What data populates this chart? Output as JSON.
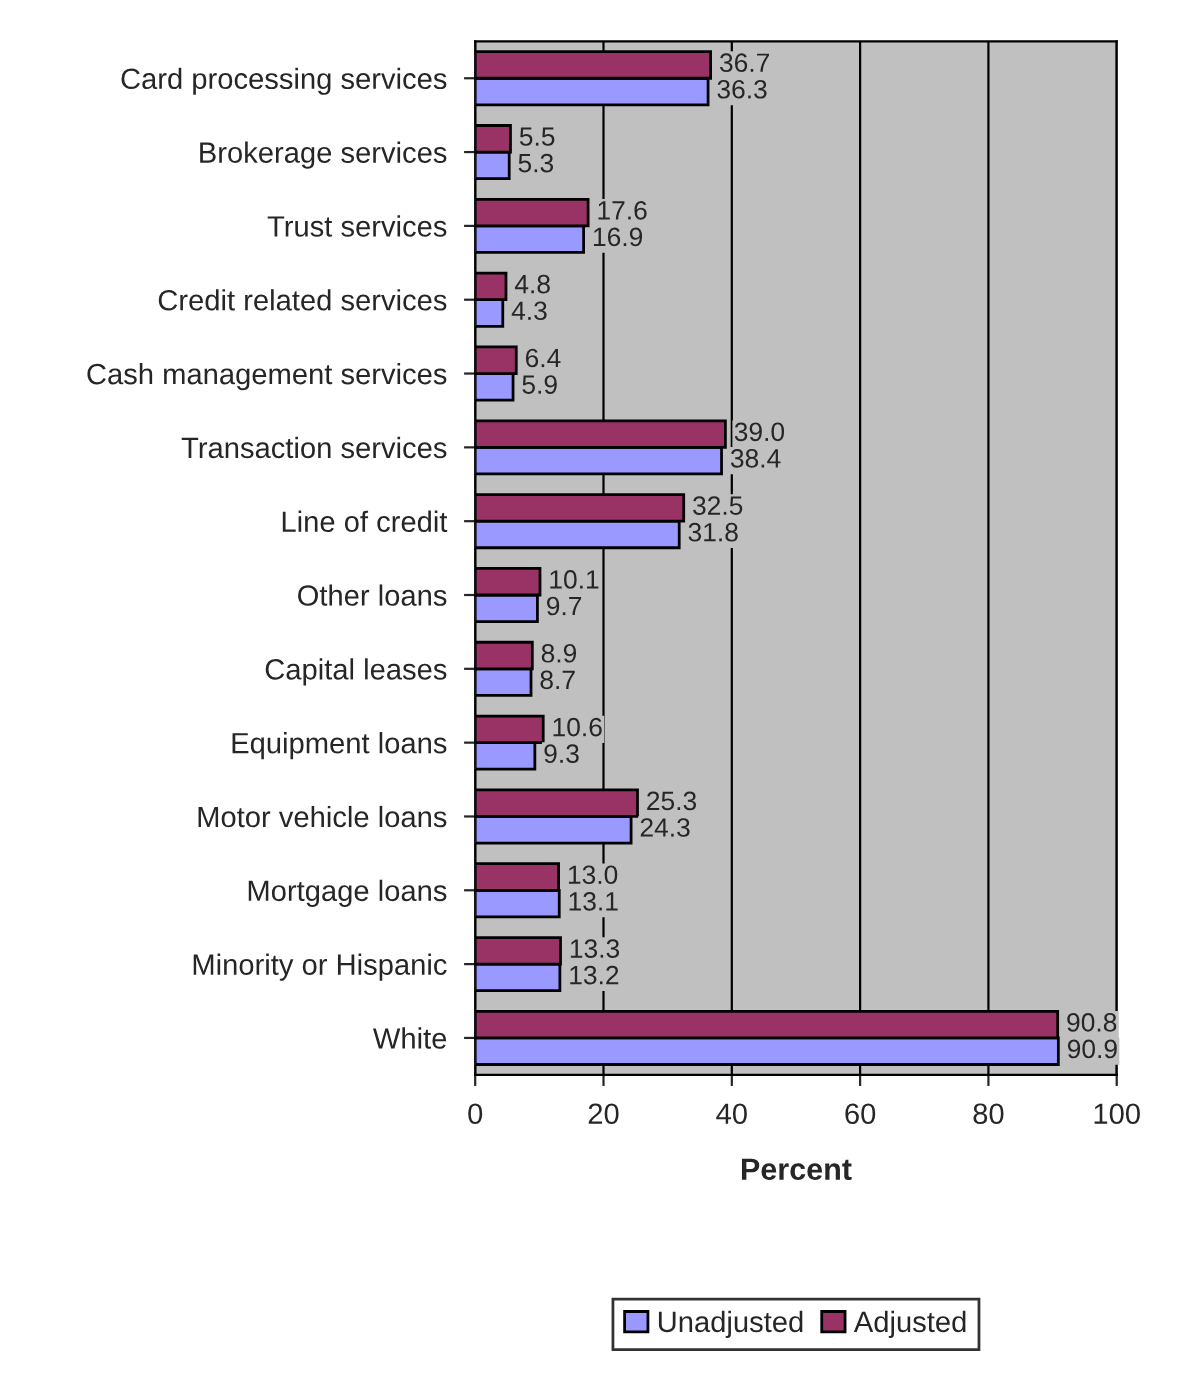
{
  "chart_data": {
    "type": "bar",
    "orientation": "horizontal",
    "xlabel": "Percent",
    "categories": [
      "Card processing services",
      "Brokerage services",
      "Trust services",
      "Credit related services",
      "Cash management services",
      "Transaction services",
      "Line of credit",
      "Other loans",
      "Capital leases",
      "Equipment loans",
      "Motor vehicle loans",
      "Mortgage loans",
      "Minority or Hispanic",
      "White"
    ],
    "series": [
      {
        "name": "Unadjusted",
        "color": "#9999ff",
        "values": [
          36.3,
          5.3,
          16.9,
          4.3,
          5.9,
          38.4,
          31.8,
          9.7,
          8.7,
          9.3,
          24.3,
          13.1,
          13.2,
          90.9
        ],
        "value_labels": [
          "36.3",
          "5.3",
          "16.9",
          "4.3",
          "5.9",
          "38.4",
          "31.8",
          "9.7",
          "8.7",
          "9.3",
          "24.3",
          "13.1",
          "13.2",
          "90.9"
        ]
      },
      {
        "name": "Adjusted",
        "color": "#993366",
        "values": [
          36.7,
          5.5,
          17.6,
          4.8,
          6.4,
          39.0,
          32.5,
          10.1,
          8.9,
          10.6,
          25.3,
          13.0,
          13.3,
          90.8
        ],
        "value_labels": [
          "36.7",
          "5.5",
          "17.6",
          "4.8",
          "6.4",
          "39.0",
          "32.5",
          "10.1",
          "8.9",
          "10.6",
          "25.3",
          "13.0",
          "13.3",
          "90.8"
        ]
      }
    ],
    "xlim": [
      0,
      100
    ],
    "xticks": [
      0,
      20,
      40,
      60,
      80,
      100
    ],
    "grid": "x",
    "legend": "bottom"
  }
}
